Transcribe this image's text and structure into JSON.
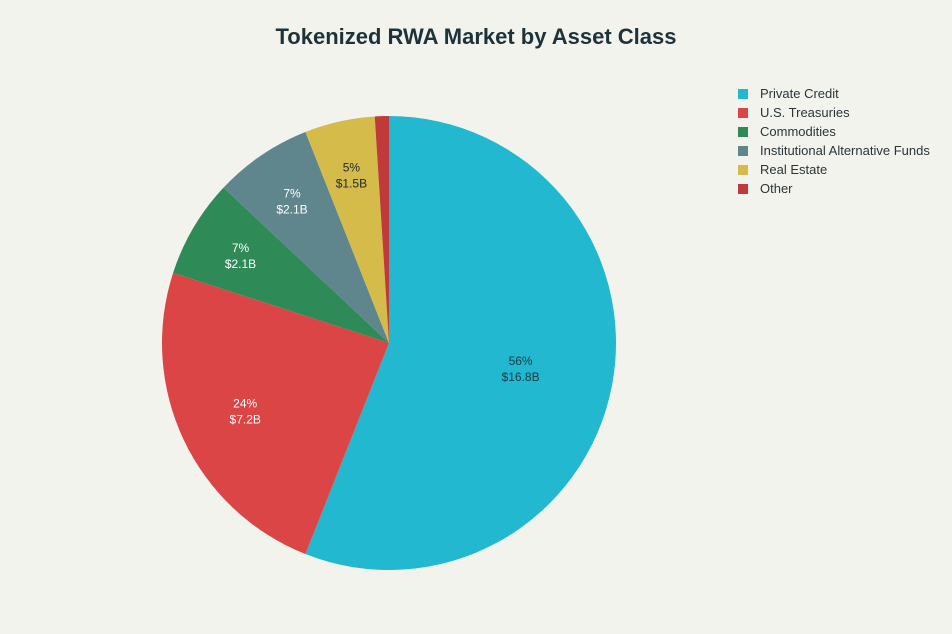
{
  "chart_data": {
    "type": "pie",
    "title": "Tokenized RWA Market by Asset Class",
    "legend_position": "top-right",
    "slices": [
      {
        "label": "Private Credit",
        "value": 16.8,
        "percent_label": "56%",
        "value_label": "$16.8B",
        "color": "#22b8cf",
        "text_color": "#1f3a40"
      },
      {
        "label": "U.S. Treasuries",
        "value": 7.2,
        "percent_label": "24%",
        "value_label": "$7.2B",
        "color": "#dc4545",
        "text_color": "#ffffff"
      },
      {
        "label": "Commodities",
        "value": 2.1,
        "percent_label": "7%",
        "value_label": "$2.1B",
        "color": "#2e8b57",
        "text_color": "#ffffff"
      },
      {
        "label": "Institutional Alternative Funds",
        "value": 2.1,
        "percent_label": "7%",
        "value_label": "$2.1B",
        "color": "#5e868c",
        "text_color": "#ffffff"
      },
      {
        "label": "Real Estate",
        "value": 1.5,
        "percent_label": "5%",
        "value_label": "$1.5B",
        "color": "#d4bb4a",
        "text_color": "#1f2a30"
      },
      {
        "label": "Other",
        "value": 0.3,
        "percent_label": "",
        "value_label": "",
        "color": "#c0393b",
        "text_color": "#ffffff"
      }
    ]
  }
}
